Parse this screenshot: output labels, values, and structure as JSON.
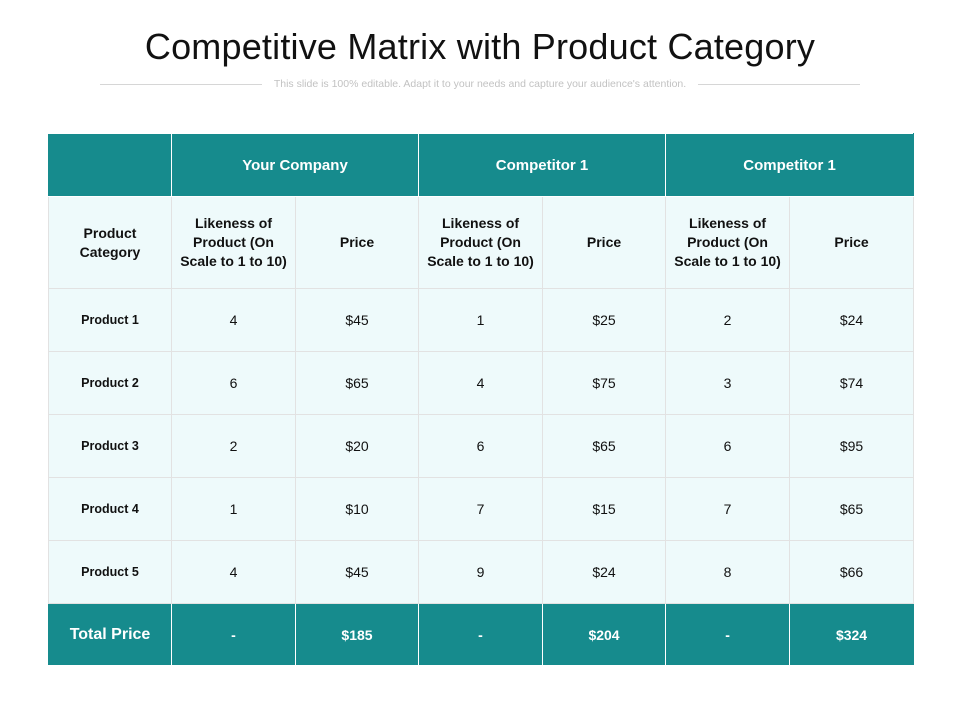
{
  "title": "Competitive Matrix with Product Category",
  "subtitle": "This slide is 100% editable. Adapt it to your needs and capture your audience's attention.",
  "colors": {
    "header_bg": "#168b8d",
    "cell_bg": "#eefafb",
    "header_text": "#ffffff"
  },
  "table": {
    "groups": [
      "Your Company",
      "Competitor 1",
      "Competitor 1"
    ],
    "subheaders": {
      "category": "Product Category",
      "likeness": "Likeness of Product (On Scale to 1 to 10)",
      "price": "Price"
    },
    "rows": [
      {
        "label": "Product 1",
        "values": [
          "4",
          "$45",
          "1",
          "$25",
          "2",
          "$24"
        ]
      },
      {
        "label": "Product 2",
        "values": [
          "6",
          "$65",
          "4",
          "$75",
          "3",
          "$74"
        ]
      },
      {
        "label": "Product 3",
        "values": [
          "2",
          "$20",
          "6",
          "$65",
          "6",
          "$95"
        ]
      },
      {
        "label": "Product 4",
        "values": [
          "1",
          "$10",
          "7",
          "$15",
          "7",
          "$65"
        ]
      },
      {
        "label": "Product 5",
        "values": [
          "4",
          "$45",
          "9",
          "$24",
          "8",
          "$66"
        ]
      }
    ],
    "total": {
      "label": "Total Price",
      "values": [
        "-",
        "$185",
        "-",
        "$204",
        "-",
        "$324"
      ]
    }
  }
}
